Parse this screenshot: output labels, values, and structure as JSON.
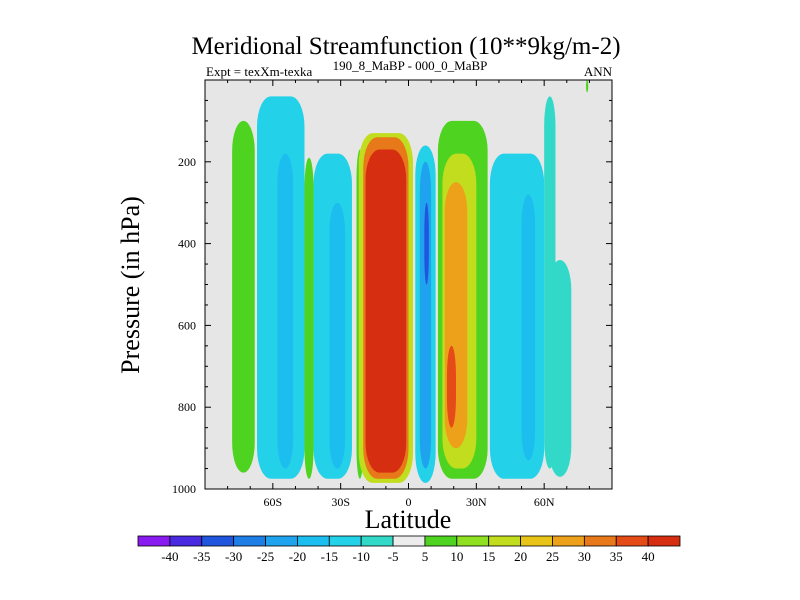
{
  "chart_data": {
    "type": "heatmap",
    "title": "Meridional Streamfunction (10**9kg/m-2)",
    "subtitle_left": "Expt = texXm-texka",
    "subtitle_center": "190_8_MaBP - 000_0_MaBP",
    "subtitle_right": "ANN",
    "xlabel": "Latitude",
    "ylabel": "Pressure (in hPa)",
    "xlim": [
      -90,
      90
    ],
    "ylim": [
      1000,
      0
    ],
    "x_ticks": [
      {
        "value": -60,
        "label": "60S"
      },
      {
        "value": -30,
        "label": "30S"
      },
      {
        "value": 0,
        "label": "0"
      },
      {
        "value": 30,
        "label": "30N"
      },
      {
        "value": 60,
        "label": "60N"
      }
    ],
    "y_ticks": [
      {
        "value": 200,
        "label": "200"
      },
      {
        "value": 400,
        "label": "400"
      },
      {
        "value": 600,
        "label": "600"
      },
      {
        "value": 800,
        "label": "800"
      },
      {
        "value": 1000,
        "label": "1000"
      }
    ],
    "background_color": "#e6e6e6",
    "colorbar": {
      "levels": [
        -40,
        -35,
        -30,
        -25,
        -20,
        -15,
        -10,
        -5,
        5,
        10,
        15,
        20,
        25,
        30,
        35,
        40
      ],
      "labels": [
        "-40",
        "-35",
        "-30",
        "-25",
        "-20",
        "-15",
        "-10",
        "-5",
        "5",
        "10",
        "15",
        "20",
        "25",
        "30",
        "35",
        "40"
      ],
      "colors": [
        "#8a1bf0",
        "#4a2ae0",
        "#1f56dd",
        "#1f7ee6",
        "#1fa3ee",
        "#1cbef0",
        "#23d2e8",
        "#33d9c8",
        "#ececec",
        "#4fd321",
        "#8ee020",
        "#c1dd1d",
        "#e9c418",
        "#eda11a",
        "#e8791a",
        "#e54b17",
        "#d62e10"
      ]
    },
    "contour_bands": [
      {
        "name": "band-60s-south-green",
        "value": 7,
        "lat": [
          -78,
          -68
        ],
        "p": [
          100,
          960
        ]
      },
      {
        "name": "band-55s-cyan",
        "value": -12,
        "lat": [
          -67,
          -46
        ],
        "p": [
          40,
          975
        ]
      },
      {
        "name": "band-45s-blue",
        "value": -20,
        "lat": [
          -58,
          -51
        ],
        "p": [
          180,
          950
        ]
      },
      {
        "name": "band-40s-green",
        "value": 7,
        "lat": [
          -46,
          -42
        ],
        "p": [
          190,
          975
        ]
      },
      {
        "name": "band-35s-cyan",
        "value": -12,
        "lat": [
          -42,
          -25
        ],
        "p": [
          180,
          975
        ]
      },
      {
        "name": "band-32s-blue",
        "value": -20,
        "lat": [
          -35,
          -28
        ],
        "p": [
          300,
          950
        ]
      },
      {
        "name": "band-20s-green",
        "value": 7,
        "lat": [
          -23,
          -20
        ],
        "p": [
          170,
          975
        ]
      },
      {
        "name": "band-15s-yellow",
        "value": 18,
        "lat": [
          -22,
          2
        ],
        "p": [
          130,
          985
        ]
      },
      {
        "name": "band-13s-orange",
        "value": 30,
        "lat": [
          -20,
          0
        ],
        "p": [
          140,
          975
        ]
      },
      {
        "name": "band-12s-red",
        "value": 42,
        "lat": [
          -19,
          -1
        ],
        "p": [
          170,
          960
        ]
      },
      {
        "name": "band-8n-cyan",
        "value": -12,
        "lat": [
          3,
          12
        ],
        "p": [
          160,
          985
        ]
      },
      {
        "name": "band-8n-blue",
        "value": -25,
        "lat": [
          5,
          10
        ],
        "p": [
          200,
          950
        ]
      },
      {
        "name": "band-9n-deep-blue",
        "value": -35,
        "lat": [
          7,
          9
        ],
        "p": [
          300,
          500
        ]
      },
      {
        "name": "band-22n-green",
        "value": 7,
        "lat": [
          13,
          35
        ],
        "p": [
          100,
          975
        ]
      },
      {
        "name": "band-22n-yellow",
        "value": 18,
        "lat": [
          15,
          30
        ],
        "p": [
          180,
          950
        ]
      },
      {
        "name": "band-20n-orange",
        "value": 28,
        "lat": [
          16,
          26
        ],
        "p": [
          250,
          900
        ]
      },
      {
        "name": "band-19n-red-orange",
        "value": 36,
        "lat": [
          17,
          21
        ],
        "p": [
          650,
          850
        ]
      },
      {
        "name": "band-48n-cyan",
        "value": -12,
        "lat": [
          36,
          60
        ],
        "p": [
          180,
          975
        ]
      },
      {
        "name": "band-55n-blue",
        "value": -20,
        "lat": [
          50,
          56
        ],
        "p": [
          280,
          930
        ]
      },
      {
        "name": "band-62n-cyan",
        "value": -10,
        "lat": [
          60,
          65
        ],
        "p": [
          40,
          950
        ]
      },
      {
        "name": "band-60n-pale-cyan",
        "value": -6,
        "lat": [
          62,
          72
        ],
        "p": [
          440,
          970
        ]
      },
      {
        "name": "band-78n-green-sliver",
        "value": 6,
        "lat": [
          78.5,
          79.5
        ],
        "p": [
          0,
          30
        ]
      }
    ]
  }
}
